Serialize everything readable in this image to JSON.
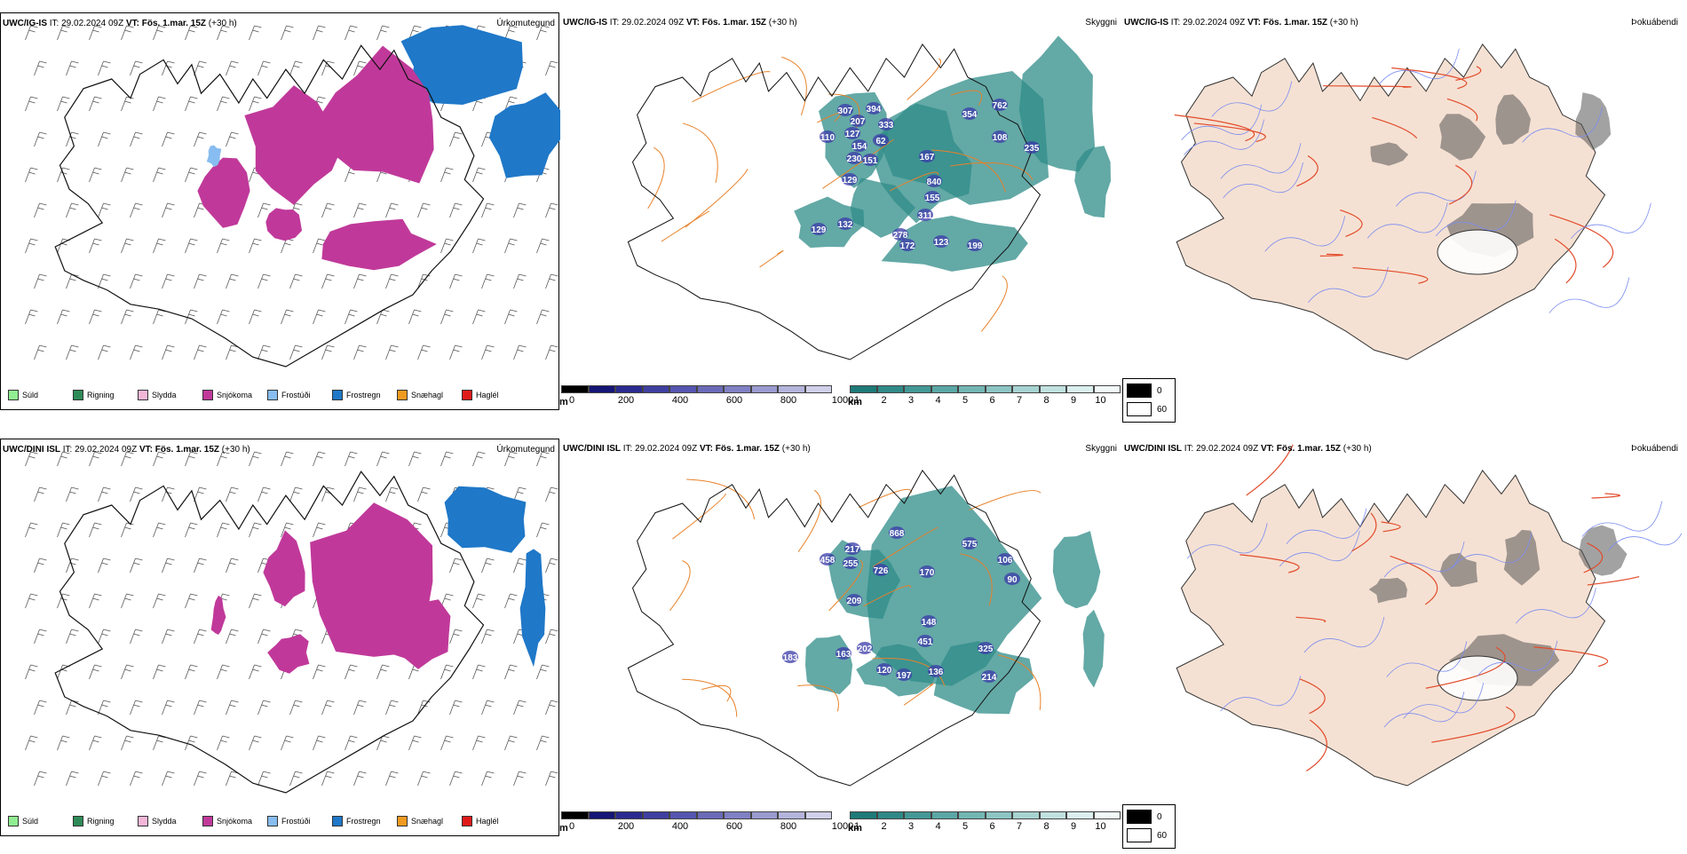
{
  "rows": [
    {
      "model": "UWC/IG-IS",
      "panels": [
        {
          "kind": "precip",
          "title": "Úrkomutegund"
        },
        {
          "kind": "cloud",
          "title": "Skyggni",
          "labels": [
            "307",
            "207",
            "394",
            "333",
            "110",
            "127",
            "62",
            "154",
            "230",
            "151",
            "167",
            "354",
            "762",
            "108",
            "235",
            "129",
            "840",
            "155",
            "129",
            "132",
            "311",
            "278",
            "172",
            "123",
            "199"
          ]
        },
        {
          "kind": "fog",
          "title": "Þokuábendi"
        }
      ]
    },
    {
      "model": "UWC/DINI ISL",
      "panels": [
        {
          "kind": "precip",
          "title": "Úrkomutegund"
        },
        {
          "kind": "cloud",
          "title": "Skyggni",
          "labels": [
            "868",
            "217",
            "458",
            "255",
            "726",
            "170",
            "575",
            "106",
            "90",
            "209",
            "148",
            "183",
            "163",
            "202",
            "451",
            "325",
            "120",
            "197",
            "136",
            "214"
          ]
        },
        {
          "kind": "fog",
          "title": "Þokuábendi"
        }
      ]
    }
  ],
  "it_label": "IT:",
  "it_value": "29.02.2024 09Z",
  "vt_label": "VT:",
  "vt_value": "Fös. 1.mar. 15Z",
  "lead": "(+30 h)",
  "precip_legend": [
    {
      "label": "Súld",
      "color": "#90ee90"
    },
    {
      "label": "Rigning",
      "color": "#2e8b57"
    },
    {
      "label": "Slydda",
      "color": "#f4b6d8"
    },
    {
      "label": "Snjókoma",
      "color": "#c0399a"
    },
    {
      "label": "Frostúði",
      "color": "#87bdf0"
    },
    {
      "label": "Frostregn",
      "color": "#1f78c8"
    },
    {
      "label": "Snæhagl",
      "color": "#f09a20"
    },
    {
      "label": "Haglél",
      "color": "#e01a1a"
    }
  ],
  "cloud_base_legend": {
    "unit": "m",
    "ticks": [
      "0",
      "200",
      "400",
      "600",
      "800",
      "1000"
    ],
    "colors": [
      "#000000",
      "#151575",
      "#2a2a90",
      "#3f3fa0",
      "#5555b0",
      "#6a6ab8",
      "#8080c4",
      "#9a9ad0",
      "#b4b4dc",
      "#d0d0ea"
    ]
  },
  "visibility_legend": {
    "unit": "km",
    "ticks": [
      "1",
      "2",
      "3",
      "4",
      "5",
      "6",
      "7",
      "8",
      "9",
      "10"
    ],
    "colors": [
      "#1e7a78",
      "#2f8987",
      "#439896",
      "#5aa7a5",
      "#72b6b4",
      "#8cc5c3",
      "#a6d3d1",
      "#c0e1df",
      "#daefee",
      "#f2f9f9"
    ]
  },
  "fog_legend": [
    {
      "label": "0",
      "color": "#000000"
    },
    {
      "label": "60",
      "color": "#ffffff"
    }
  ]
}
